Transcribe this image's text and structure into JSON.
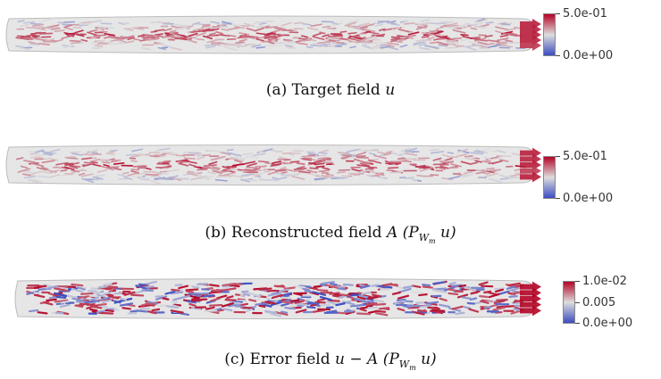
{
  "colormap": {
    "low": "#3b4cc0",
    "mid": "#dddddd",
    "high": "#b40426"
  },
  "panels": [
    {
      "caption_label": "(a) Target field",
      "caption_math": "u",
      "legend": {
        "max": "5.0e-01",
        "min": "0.0e+00",
        "mid": ""
      }
    },
    {
      "caption_label": "(b) Reconstructed field",
      "caption_math": "A (P",
      "caption_sub": "W",
      "caption_subsub": "m",
      "caption_tail": " u)",
      "legend": {
        "max": "5.0e-01",
        "min": "0.0e+00",
        "mid": ""
      }
    },
    {
      "caption_label": "(c) Error field",
      "caption_math": "u − A (P",
      "caption_sub": "W",
      "caption_subsub": "m",
      "caption_tail": " u)",
      "legend": {
        "max": "1.0e-02",
        "min": "0.0e+00",
        "mid": "0.005"
      }
    }
  ]
}
